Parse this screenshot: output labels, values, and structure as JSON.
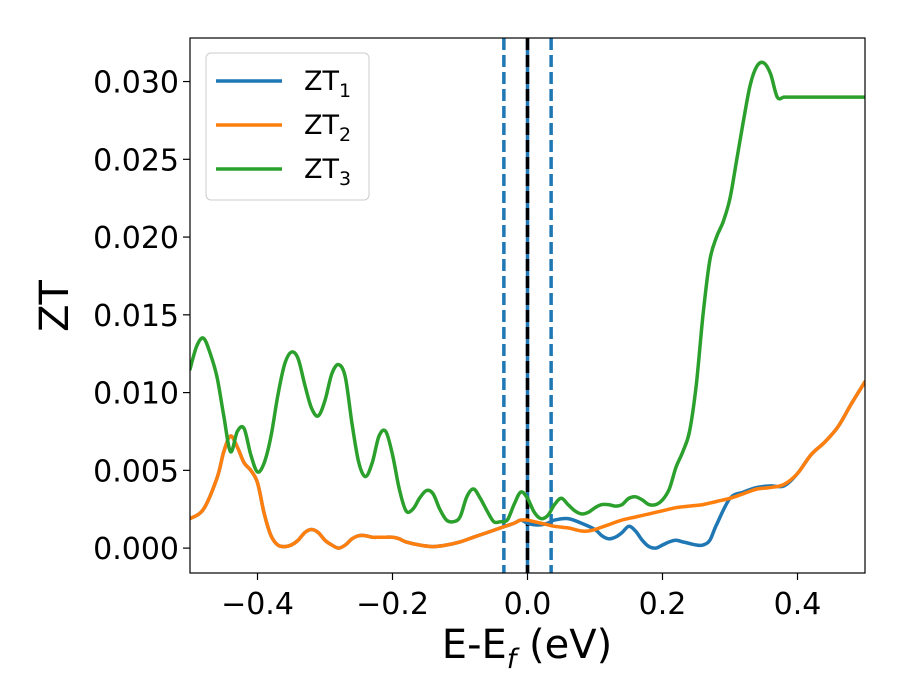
{
  "chart_data": {
    "type": "line",
    "xlabel_main": "E-E",
    "xlabel_sub": "f",
    "xlabel_unit": " (eV)",
    "ylabel": "ZT",
    "xlim": [
      -0.5,
      0.5
    ],
    "ylim": [
      -0.0016,
      0.0328
    ],
    "x_ticks": [
      -0.4,
      -0.2,
      0.0,
      0.2,
      0.4
    ],
    "x_tick_labels": [
      "−0.4",
      "−0.2",
      "0.0",
      "0.2",
      "0.4"
    ],
    "y_ticks": [
      0.0,
      0.005,
      0.01,
      0.015,
      0.02,
      0.025,
      0.03
    ],
    "y_tick_labels": [
      "0.000",
      "0.005",
      "0.010",
      "0.015",
      "0.020",
      "0.025",
      "0.030"
    ],
    "legend_position": "top-left",
    "vertical_lines": [
      {
        "x": -0.035,
        "style": "dashed",
        "color": "#1f77b4"
      },
      {
        "x": 0.0,
        "style": "solid",
        "color": "#1f77b4"
      },
      {
        "x": 0.0,
        "style": "dashed",
        "color": "#000000"
      },
      {
        "x": 0.035,
        "style": "dashed",
        "color": "#1f77b4"
      }
    ],
    "series": [
      {
        "name": "ZT",
        "subscript": "1",
        "color": "#1f77b4",
        "x": [
          -0.5,
          -0.48,
          -0.46,
          -0.45,
          -0.44,
          -0.43,
          -0.42,
          -0.41,
          -0.4,
          -0.39,
          -0.38,
          -0.37,
          -0.36,
          -0.35,
          -0.34,
          -0.33,
          -0.32,
          -0.31,
          -0.3,
          -0.29,
          -0.28,
          -0.27,
          -0.26,
          -0.25,
          -0.24,
          -0.23,
          -0.22,
          -0.21,
          -0.2,
          -0.19,
          -0.18,
          -0.16,
          -0.14,
          -0.12,
          -0.1,
          -0.08,
          -0.06,
          -0.04,
          -0.02,
          -0.01,
          0.0,
          0.01,
          0.02,
          0.03,
          0.04,
          0.06,
          0.08,
          0.1,
          0.11,
          0.12,
          0.13,
          0.14,
          0.15,
          0.16,
          0.17,
          0.18,
          0.19,
          0.2,
          0.21,
          0.22,
          0.23,
          0.24,
          0.25,
          0.26,
          0.27,
          0.28,
          0.3,
          0.32,
          0.34,
          0.36,
          0.38,
          0.4,
          0.42,
          0.44,
          0.46,
          0.48,
          0.5
        ],
        "y": [
          0.0019,
          0.0025,
          0.0045,
          0.0062,
          0.0072,
          0.0065,
          0.0055,
          0.005,
          0.0042,
          0.0022,
          0.0008,
          0.0002,
          0.0001,
          0.0002,
          0.0005,
          0.001,
          0.0012,
          0.001,
          0.0005,
          0.0002,
          0.0,
          0.0002,
          0.0006,
          0.0008,
          0.0008,
          0.0007,
          0.0007,
          0.0007,
          0.0007,
          0.0006,
          0.0004,
          0.0002,
          0.0001,
          0.0002,
          0.0004,
          0.0007,
          0.001,
          0.0013,
          0.0016,
          0.0018,
          0.0016,
          0.0015,
          0.0015,
          0.0016,
          0.0018,
          0.0019,
          0.0016,
          0.0012,
          0.0008,
          0.0006,
          0.0007,
          0.001,
          0.0014,
          0.0011,
          0.0005,
          0.0001,
          0.0,
          0.0002,
          0.0004,
          0.0005,
          0.0004,
          0.0003,
          0.0002,
          0.0002,
          0.0005,
          0.0015,
          0.0032,
          0.0036,
          0.0039,
          0.004,
          0.004,
          0.0048,
          0.006,
          0.0068,
          0.0078,
          0.0093,
          0.0107
        ]
      },
      {
        "name": "ZT",
        "subscript": "2",
        "color": "#ff7f0e",
        "x": [
          -0.5,
          -0.48,
          -0.46,
          -0.45,
          -0.44,
          -0.43,
          -0.42,
          -0.41,
          -0.4,
          -0.39,
          -0.38,
          -0.37,
          -0.36,
          -0.35,
          -0.34,
          -0.33,
          -0.32,
          -0.31,
          -0.3,
          -0.29,
          -0.28,
          -0.27,
          -0.26,
          -0.25,
          -0.24,
          -0.23,
          -0.22,
          -0.21,
          -0.2,
          -0.19,
          -0.18,
          -0.16,
          -0.14,
          -0.12,
          -0.1,
          -0.08,
          -0.06,
          -0.04,
          -0.02,
          -0.01,
          0.0,
          0.01,
          0.02,
          0.03,
          0.04,
          0.06,
          0.07,
          0.08,
          0.09,
          0.1,
          0.12,
          0.14,
          0.16,
          0.18,
          0.2,
          0.22,
          0.24,
          0.26,
          0.28,
          0.3,
          0.32,
          0.34,
          0.36,
          0.38,
          0.4,
          0.42,
          0.44,
          0.46,
          0.48,
          0.5
        ],
        "y": [
          0.0019,
          0.0025,
          0.0045,
          0.0062,
          0.0072,
          0.0065,
          0.0055,
          0.005,
          0.0042,
          0.0022,
          0.0008,
          0.0002,
          0.0001,
          0.0002,
          0.0005,
          0.001,
          0.0012,
          0.001,
          0.0005,
          0.0002,
          0.0,
          0.0002,
          0.0006,
          0.0008,
          0.0008,
          0.0007,
          0.0007,
          0.0007,
          0.0007,
          0.0006,
          0.0004,
          0.0002,
          0.0001,
          0.0002,
          0.0004,
          0.0007,
          0.001,
          0.0013,
          0.0016,
          0.0018,
          0.0018,
          0.0017,
          0.0016,
          0.0015,
          0.0014,
          0.0013,
          0.0012,
          0.0011,
          0.0011,
          0.0012,
          0.0015,
          0.0018,
          0.002,
          0.0022,
          0.0024,
          0.0026,
          0.0027,
          0.0028,
          0.003,
          0.0032,
          0.0035,
          0.0038,
          0.0039,
          0.0041,
          0.0048,
          0.006,
          0.0068,
          0.0078,
          0.0093,
          0.0107
        ]
      },
      {
        "name": "ZT",
        "subscript": "3",
        "color": "#2ca02c",
        "x": [
          -0.5,
          -0.49,
          -0.48,
          -0.47,
          -0.46,
          -0.45,
          -0.44,
          -0.43,
          -0.42,
          -0.41,
          -0.4,
          -0.39,
          -0.38,
          -0.37,
          -0.36,
          -0.35,
          -0.34,
          -0.33,
          -0.32,
          -0.31,
          -0.3,
          -0.29,
          -0.28,
          -0.27,
          -0.26,
          -0.25,
          -0.24,
          -0.23,
          -0.22,
          -0.21,
          -0.2,
          -0.19,
          -0.18,
          -0.17,
          -0.16,
          -0.15,
          -0.14,
          -0.13,
          -0.12,
          -0.11,
          -0.1,
          -0.09,
          -0.08,
          -0.07,
          -0.06,
          -0.05,
          -0.04,
          -0.03,
          -0.02,
          -0.01,
          0.0,
          0.01,
          0.02,
          0.03,
          0.04,
          0.05,
          0.06,
          0.07,
          0.08,
          0.09,
          0.1,
          0.11,
          0.12,
          0.13,
          0.14,
          0.15,
          0.16,
          0.17,
          0.18,
          0.19,
          0.2,
          0.21,
          0.22,
          0.23,
          0.24,
          0.25,
          0.26,
          0.27,
          0.28,
          0.29,
          0.3,
          0.31,
          0.32,
          0.33,
          0.34,
          0.35,
          0.36,
          0.37,
          0.38,
          0.39,
          0.4,
          0.41,
          0.42,
          0.43,
          0.44,
          0.45,
          0.46,
          0.47,
          0.48,
          0.49,
          0.5
        ],
        "y": [
          0.0115,
          0.013,
          0.0135,
          0.0125,
          0.011,
          0.0085,
          0.0062,
          0.0075,
          0.0077,
          0.006,
          0.0049,
          0.0055,
          0.0072,
          0.0098,
          0.0118,
          0.0126,
          0.0122,
          0.0105,
          0.009,
          0.0085,
          0.0095,
          0.0112,
          0.0118,
          0.011,
          0.008,
          0.0055,
          0.0046,
          0.0055,
          0.0072,
          0.0075,
          0.006,
          0.0038,
          0.0024,
          0.0025,
          0.0032,
          0.0037,
          0.0035,
          0.0025,
          0.0018,
          0.0017,
          0.002,
          0.0033,
          0.0038,
          0.0032,
          0.0024,
          0.0017,
          0.0017,
          0.0018,
          0.0028,
          0.0036,
          0.0032,
          0.0023,
          0.0019,
          0.0021,
          0.0028,
          0.0032,
          0.0028,
          0.0024,
          0.0022,
          0.0023,
          0.0026,
          0.0028,
          0.0028,
          0.0027,
          0.0028,
          0.0032,
          0.0033,
          0.0031,
          0.0028,
          0.0028,
          0.0031,
          0.0038,
          0.0052,
          0.0062,
          0.0075,
          0.0105,
          0.015,
          0.0185,
          0.02,
          0.021,
          0.0225,
          0.025,
          0.0275,
          0.0298,
          0.031,
          0.0312,
          0.0305,
          0.029,
          0.029,
          0.029,
          0.029,
          0.029,
          0.029,
          0.029,
          0.029,
          0.029,
          0.029,
          0.029,
          0.029,
          0.029,
          0.029
        ]
      }
    ]
  }
}
